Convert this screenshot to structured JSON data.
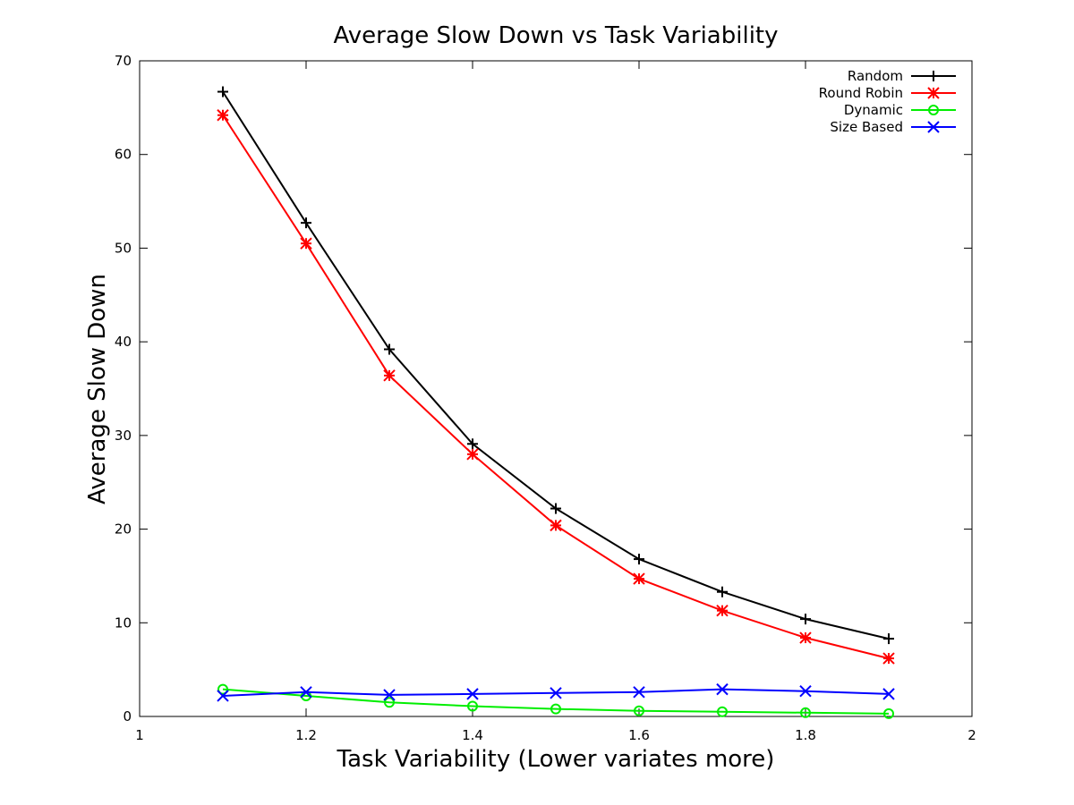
{
  "chart_data": {
    "type": "line",
    "title": "Average Slow Down vs Task Variability",
    "xlabel": "Task Variability (Lower variates more)",
    "ylabel": "Average Slow Down",
    "xlim": [
      1,
      2
    ],
    "ylim": [
      0,
      70
    ],
    "xticks": [
      "1",
      "1.2",
      "1.4",
      "1.6",
      "1.8",
      "2"
    ],
    "yticks": [
      "0",
      "10",
      "20",
      "30",
      "40",
      "50",
      "60",
      "70"
    ],
    "grid": false,
    "legend_position": "top-right",
    "x": [
      1.1,
      1.2,
      1.3,
      1.4,
      1.5,
      1.6,
      1.7,
      1.8,
      1.9
    ],
    "series": [
      {
        "name": "Random",
        "color": "#000000",
        "marker": "plus",
        "values": [
          66.7,
          52.7,
          39.2,
          29.1,
          22.2,
          16.8,
          13.3,
          10.4,
          8.3
        ]
      },
      {
        "name": "Round Robin",
        "color": "#ff0000",
        "marker": "star",
        "values": [
          64.2,
          50.5,
          36.4,
          28.0,
          20.4,
          14.7,
          11.3,
          8.4,
          6.2
        ]
      },
      {
        "name": "Dynamic",
        "color": "#00ee00",
        "marker": "circle",
        "values": [
          2.9,
          2.2,
          1.5,
          1.1,
          0.8,
          0.6,
          0.5,
          0.4,
          0.3
        ]
      },
      {
        "name": "Size Based",
        "color": "#0000ff",
        "marker": "cross",
        "values": [
          2.2,
          2.6,
          2.3,
          2.4,
          2.5,
          2.6,
          2.9,
          2.7,
          2.4
        ]
      }
    ]
  }
}
